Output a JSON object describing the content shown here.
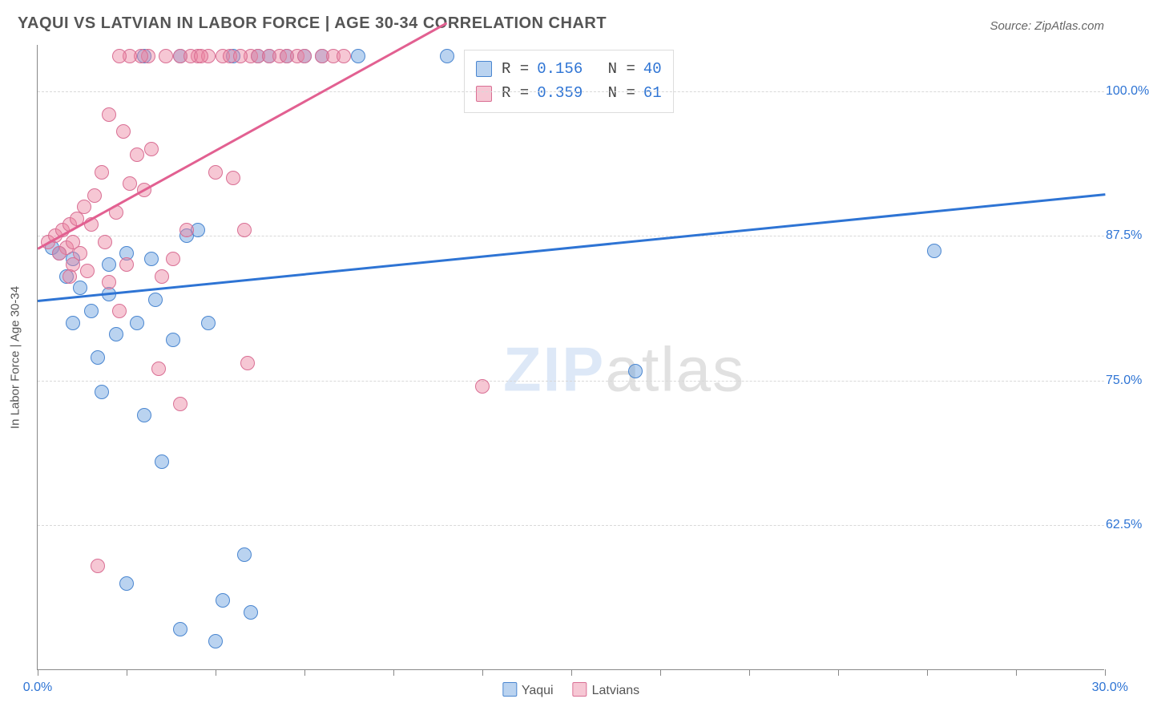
{
  "title": "YAQUI VS LATVIAN IN LABOR FORCE | AGE 30-34 CORRELATION CHART",
  "source": "Source: ZipAtlas.com",
  "ylabel": "In Labor Force | Age 30-34",
  "watermark": {
    "part1": "ZIP",
    "part2": "atlas"
  },
  "chart": {
    "type": "scatter",
    "background_color": "#ffffff",
    "grid_color": "#d8d8d8",
    "axis_color": "#888888",
    "label_color": "#2e74d4",
    "text_color": "#555555",
    "x": {
      "min": 0.0,
      "max": 30.0,
      "tick_step": 2.5,
      "label_min": "0.0%",
      "label_max": "30.0%"
    },
    "y": {
      "min": 50.0,
      "max": 104.0,
      "gridlines": [
        62.5,
        75.0,
        87.5,
        100.0
      ],
      "labels": [
        "62.5%",
        "75.0%",
        "87.5%",
        "100.0%"
      ]
    },
    "marker_radius": 9,
    "marker_opacity": 0.55,
    "trend_line_width": 2.5,
    "series": [
      {
        "name": "Yaqui",
        "color_fill": "rgba(103,158,222,0.45)",
        "color_stroke": "#4a86d0",
        "stats": {
          "R": "0.156",
          "N": "40"
        },
        "trend": {
          "x1": 0.0,
          "y1": 82.0,
          "x2": 30.0,
          "y2": 91.2,
          "color": "#2e74d4"
        },
        "points": [
          [
            0.4,
            86.5
          ],
          [
            0.6,
            86.0
          ],
          [
            0.8,
            84.0
          ],
          [
            1.0,
            85.5
          ],
          [
            1.2,
            83.0
          ],
          [
            1.5,
            81.0
          ],
          [
            1.8,
            74.0
          ],
          [
            2.0,
            85.0
          ],
          [
            2.2,
            79.0
          ],
          [
            2.5,
            57.5
          ],
          [
            2.8,
            80.0
          ],
          [
            3.0,
            72.0
          ],
          [
            3.2,
            85.5
          ],
          [
            3.5,
            68.0
          ],
          [
            3.8,
            78.5
          ],
          [
            4.0,
            53.5
          ],
          [
            4.2,
            87.5
          ],
          [
            4.5,
            88.0
          ],
          [
            4.8,
            80.0
          ],
          [
            5.0,
            52.5
          ],
          [
            5.2,
            56.0
          ],
          [
            5.5,
            103.0
          ],
          [
            5.8,
            60.0
          ],
          [
            6.0,
            55.0
          ],
          [
            6.2,
            103.0
          ],
          [
            4.0,
            103.0
          ],
          [
            3.0,
            103.0
          ],
          [
            6.5,
            103.0
          ],
          [
            7.0,
            103.0
          ],
          [
            7.5,
            103.0
          ],
          [
            8.0,
            103.0
          ],
          [
            9.0,
            103.0
          ],
          [
            11.5,
            103.0
          ],
          [
            16.8,
            75.8
          ],
          [
            25.2,
            86.2
          ],
          [
            2.0,
            82.5
          ],
          [
            2.5,
            86.0
          ],
          [
            1.0,
            80.0
          ],
          [
            1.7,
            77.0
          ],
          [
            3.3,
            82.0
          ]
        ]
      },
      {
        "name": "Latvians",
        "color_fill": "rgba(235,130,160,0.45)",
        "color_stroke": "#d96f94",
        "stats": {
          "R": "0.359",
          "N": "61"
        },
        "trend": {
          "x1": 0.0,
          "y1": 86.5,
          "x2": 11.5,
          "y2": 106.0,
          "color": "#e26091"
        },
        "points": [
          [
            0.3,
            87.0
          ],
          [
            0.5,
            87.5
          ],
          [
            0.7,
            88.0
          ],
          [
            0.8,
            86.5
          ],
          [
            0.9,
            88.5
          ],
          [
            1.0,
            87.0
          ],
          [
            1.1,
            89.0
          ],
          [
            1.2,
            86.0
          ],
          [
            1.3,
            90.0
          ],
          [
            1.5,
            88.5
          ],
          [
            1.6,
            91.0
          ],
          [
            1.8,
            93.0
          ],
          [
            2.0,
            98.0
          ],
          [
            2.2,
            89.5
          ],
          [
            2.4,
            96.5
          ],
          [
            2.5,
            85.0
          ],
          [
            2.6,
            92.0
          ],
          [
            2.8,
            94.5
          ],
          [
            3.0,
            91.5
          ],
          [
            3.2,
            95.0
          ],
          [
            3.4,
            76.0
          ],
          [
            3.5,
            84.0
          ],
          [
            3.8,
            85.5
          ],
          [
            4.0,
            73.0
          ],
          [
            4.2,
            88.0
          ],
          [
            4.5,
            103.0
          ],
          [
            4.8,
            103.0
          ],
          [
            5.0,
            93.0
          ],
          [
            5.2,
            103.0
          ],
          [
            5.5,
            92.5
          ],
          [
            5.8,
            88.0
          ],
          [
            6.0,
            103.0
          ],
          [
            6.2,
            103.0
          ],
          [
            6.5,
            103.0
          ],
          [
            6.8,
            103.0
          ],
          [
            7.0,
            103.0
          ],
          [
            7.3,
            103.0
          ],
          [
            7.5,
            103.0
          ],
          [
            12.5,
            74.5
          ],
          [
            1.7,
            59.0
          ],
          [
            2.0,
            83.5
          ],
          [
            2.3,
            81.0
          ],
          [
            1.4,
            84.5
          ],
          [
            1.0,
            85.0
          ],
          [
            0.6,
            86.0
          ],
          [
            0.9,
            84.0
          ],
          [
            1.9,
            87.0
          ],
          [
            3.6,
            103.0
          ],
          [
            4.0,
            103.0
          ],
          [
            4.3,
            103.0
          ],
          [
            4.6,
            103.0
          ],
          [
            5.4,
            103.0
          ],
          [
            5.7,
            103.0
          ],
          [
            3.1,
            103.0
          ],
          [
            2.9,
            103.0
          ],
          [
            2.6,
            103.0
          ],
          [
            2.3,
            103.0
          ],
          [
            8.0,
            103.0
          ],
          [
            8.3,
            103.0
          ],
          [
            8.6,
            103.0
          ],
          [
            5.9,
            76.5
          ]
        ]
      }
    ],
    "legend": [
      {
        "label": "Yaqui",
        "fill": "rgba(103,158,222,0.45)",
        "stroke": "#4a86d0"
      },
      {
        "label": "Latvians",
        "fill": "rgba(235,130,160,0.45)",
        "stroke": "#d96f94"
      }
    ]
  }
}
